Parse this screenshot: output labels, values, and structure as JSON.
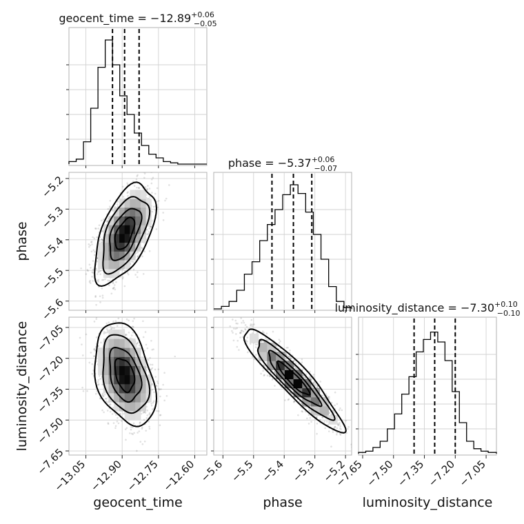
{
  "chart_data": {
    "type": "corner",
    "parameters": [
      "geocent_time",
      "phase",
      "luminosity_distance"
    ],
    "axis_labels": {
      "geocent_time": "geocent_time",
      "phase": "phase",
      "luminosity_distance": "luminosity_distance"
    },
    "titles": [
      {
        "param": "geocent_time",
        "text": "geocent_time = −12.89",
        "sup": "+0.06",
        "sub": "−0.05"
      },
      {
        "param": "phase",
        "text": "phase = −5.37",
        "sup": "+0.06",
        "sub": "−0.07"
      },
      {
        "param": "luminosity_distance",
        "text": "luminosity_distance = −7.30",
        "sup": "+0.10",
        "sub": "−0.10"
      }
    ],
    "ranges": {
      "geocent_time": [
        -13.12,
        -12.55
      ],
      "phase": [
        -5.63,
        -5.18
      ],
      "luminosity_distance": [
        -7.67,
        -7.0
      ]
    },
    "ticks": {
      "geocent_time": [
        -13.05,
        -12.9,
        -12.75,
        -12.6
      ],
      "phase": [
        -5.6,
        -5.5,
        -5.4,
        -5.3,
        -5.2
      ],
      "luminosity_distance": [
        -7.65,
        -7.5,
        -7.35,
        -7.2,
        -7.05
      ]
    },
    "tick_labels": {
      "geocent_time": [
        "−13.05",
        "−12.90",
        "−12.75",
        "−12.60"
      ],
      "phase": [
        "−5.6",
        "−5.5",
        "−5.4",
        "−5.3",
        "−5.2"
      ],
      "luminosity_distance": [
        "−7.65",
        "−7.50",
        "−7.35",
        "−7.20",
        "−7.05"
      ]
    },
    "quantiles": {
      "geocent_time": [
        -12.94,
        -12.89,
        -12.83
      ],
      "phase": [
        -5.44,
        -5.37,
        -5.31
      ],
      "luminosity_distance": [
        -7.4,
        -7.3,
        -7.2
      ]
    },
    "histograms": {
      "geocent_time": {
        "edges": [
          -13.12,
          -13.09,
          -13.06,
          -13.03,
          -13.0,
          -12.97,
          -12.94,
          -12.91,
          -12.88,
          -12.85,
          -12.82,
          -12.79,
          -12.76,
          -12.73,
          -12.7,
          -12.67,
          -12.64,
          -12.61,
          -12.58,
          -12.55
        ],
        "counts": [
          0.02,
          0.04,
          0.18,
          0.45,
          0.78,
          1.0,
          0.8,
          0.55,
          0.4,
          0.25,
          0.15,
          0.08,
          0.05,
          0.02,
          0.01,
          0.0,
          0.0,
          0.0,
          0.0
        ]
      },
      "phase": {
        "edges": [
          -5.63,
          -5.605,
          -5.58,
          -5.555,
          -5.53,
          -5.505,
          -5.48,
          -5.455,
          -5.43,
          -5.405,
          -5.38,
          -5.355,
          -5.33,
          -5.305,
          -5.28,
          -5.255,
          -5.23,
          -5.205,
          -5.18
        ],
        "counts": [
          0.0,
          0.02,
          0.06,
          0.15,
          0.28,
          0.38,
          0.55,
          0.68,
          0.8,
          0.92,
          1.0,
          0.93,
          0.78,
          0.6,
          0.4,
          0.18,
          0.06,
          0.01
        ]
      },
      "luminosity_distance": {
        "edges": [
          -7.67,
          -7.635,
          -7.6,
          -7.565,
          -7.53,
          -7.495,
          -7.46,
          -7.425,
          -7.39,
          -7.355,
          -7.32,
          -7.285,
          -7.25,
          -7.215,
          -7.18,
          -7.145,
          -7.11,
          -7.075,
          -7.04,
          -7.0
        ],
        "counts": [
          0.01,
          0.02,
          0.05,
          0.1,
          0.2,
          0.32,
          0.48,
          0.62,
          0.82,
          0.92,
          0.98,
          0.9,
          0.75,
          0.5,
          0.25,
          0.1,
          0.04,
          0.02,
          0.01
        ]
      }
    },
    "pairs": [
      {
        "x": "geocent_time",
        "y": "phase",
        "mean": [
          -12.89,
          -5.38
        ],
        "sd": [
          0.05,
          0.065
        ],
        "rho": 0.55
      },
      {
        "x": "geocent_time",
        "y": "luminosity_distance",
        "mean": [
          -12.89,
          -7.28
        ],
        "sd": [
          0.05,
          0.1
        ],
        "rho": -0.35
      },
      {
        "x": "phase",
        "y": "luminosity_distance",
        "mean": [
          -5.37,
          -7.3
        ],
        "sd": [
          0.065,
          0.1
        ],
        "rho": -0.92
      }
    ],
    "grid": true
  }
}
